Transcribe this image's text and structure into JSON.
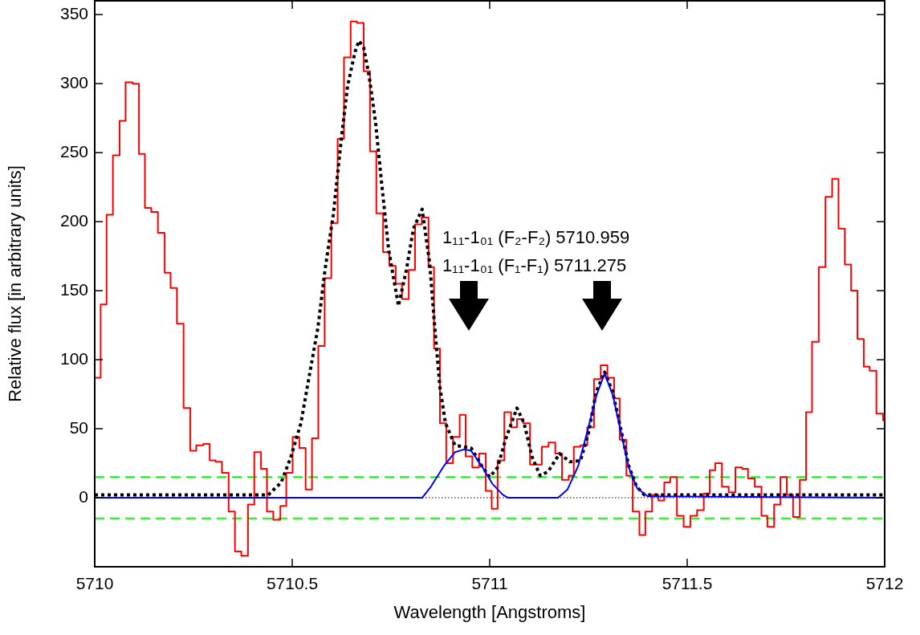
{
  "chart_data": {
    "type": "line",
    "xlabel": "Wavelength [Angstroms]",
    "ylabel": "Relative flux [in arbitrary units]",
    "xlim": [
      5710,
      5712
    ],
    "xticks": [
      5710,
      5710.5,
      5711,
      5711.5,
      5712
    ],
    "ylim": [
      -50,
      360
    ],
    "yticks": [
      0,
      50,
      100,
      150,
      200,
      250,
      300,
      350
    ],
    "annotations": [
      "1₁₁-1₀₁ (F₂-F₂) 5710.959",
      "1₁₁-1₀₁ (F₁-F₁) 5711.275"
    ],
    "ref_lines": [
      {
        "axis": "y",
        "value": 0,
        "label": null,
        "color": "#000000",
        "line_style": "dotted"
      },
      {
        "axis": "y",
        "value": 15,
        "label": null,
        "color": "#00ff00",
        "line_style": "dashed"
      },
      {
        "axis": "y",
        "value": -15,
        "label": null,
        "color": "#00ff00",
        "line_style": "dashed"
      }
    ],
    "series": [
      {
        "type": "step",
        "color": "#ff0000",
        "line_style": "solid",
        "x": [
          5710,
          5710.015,
          5710.03,
          5710.046,
          5710.063,
          5710.078,
          5710.096,
          5710.112,
          5710.127,
          5710.143,
          5710.16,
          5710.177,
          5710.192,
          5710.208,
          5710.225,
          5710.242,
          5710.257,
          5710.275,
          5710.291,
          5710.306,
          5710.322,
          5710.339,
          5710.355,
          5710.371,
          5710.388,
          5710.404,
          5710.421,
          5710.436,
          5710.452,
          5710.47,
          5710.485,
          5710.501,
          5710.518,
          5710.534,
          5710.55,
          5710.566,
          5710.582,
          5710.599,
          5710.615,
          5710.631,
          5710.648,
          5710.664,
          5710.681,
          5710.697,
          5710.713,
          5710.73,
          5710.746,
          5710.762,
          5710.778,
          5710.795,
          5710.811,
          5710.828,
          5710.845,
          5710.859,
          5710.874,
          5710.89,
          5710.907,
          5710.924,
          5710.939,
          5710.956,
          5710.973,
          5710.99,
          5711.005,
          5711.02,
          5711.037,
          5711.054,
          5711.069,
          5711.085,
          5711.102,
          5711.117,
          5711.132,
          5711.149,
          5711.166,
          5711.183,
          5711.2,
          5711.213,
          5711.23,
          5711.247,
          5711.264,
          5711.281,
          5711.298,
          5711.315,
          5711.329,
          5711.346,
          5711.362,
          5711.379,
          5711.394,
          5711.411,
          5711.427,
          5711.442,
          5711.457,
          5711.474,
          5711.491,
          5711.508,
          5711.525,
          5711.542,
          5711.557,
          5711.571,
          5711.588,
          5711.605,
          5711.622,
          5711.639,
          5711.654,
          5711.671,
          5711.688,
          5711.703,
          5711.72,
          5711.736,
          5711.752,
          5711.768,
          5711.785,
          5711.801,
          5711.816,
          5711.833,
          5711.85,
          5711.867,
          5711.883,
          5711.899,
          5711.915,
          5711.931,
          5711.947,
          5711.962,
          5711.979,
          5711.996,
          5712
        ],
        "values": [
          87,
          140,
          205,
          248,
          273,
          301,
          300,
          249,
          210,
          207,
          192,
          163,
          152,
          126,
          65,
          34,
          38,
          39,
          27,
          26,
          18,
          -10,
          -39,
          -42,
          -5,
          33,
          21,
          -10,
          -16,
          -6,
          18,
          44,
          36,
          6,
          43,
          110,
          159,
          199,
          260,
          319,
          345,
          344,
          309,
          251,
          206,
          178,
          168,
          155,
          144,
          165,
          198,
          203,
          167,
          108,
          54,
          25,
          44,
          60,
          30,
          22,
          32,
          5,
          -8,
          27,
          62,
          51,
          57,
          54,
          24,
          24,
          37,
          40,
          32,
          13,
          16,
          37,
          38,
          51,
          86,
          96,
          87,
          72,
          42,
          16,
          -10,
          -27,
          -10,
          2,
          -2,
          11,
          15,
          -13,
          -21,
          -13,
          -9,
          3,
          20,
          25,
          8,
          4,
          22,
          21,
          14,
          8,
          -13,
          -21,
          -5,
          15,
          2,
          -14,
          13,
          62,
          113,
          167,
          218,
          231,
          195,
          169,
          150,
          115,
          95,
          92,
          61,
          56,
          56
        ]
      },
      {
        "color": "#000000",
        "line_style": "dotted",
        "x": [
          5710,
          5710.439,
          5710.472,
          5710.496,
          5710.522,
          5710.543,
          5710.565,
          5710.583,
          5710.604,
          5710.624,
          5710.64,
          5710.659,
          5710.669,
          5710.681,
          5710.695,
          5710.711,
          5710.726,
          5710.744,
          5710.769,
          5710.789,
          5710.807,
          5710.829,
          5710.848,
          5710.861,
          5710.874,
          5710.888,
          5710.912,
          5710.953,
          5710.98,
          5711.0,
          5711.02,
          5711.041,
          5711.069,
          5711.087,
          5711.108,
          5711.128,
          5711.148,
          5711.177,
          5711.203,
          5711.23,
          5711.25,
          5711.27,
          5711.291,
          5711.311,
          5711.331,
          5711.352,
          5711.372,
          5711.392,
          5712
        ],
        "values": [
          2,
          2,
          11,
          29,
          54,
          88,
          123,
          165,
          205,
          259,
          298,
          323,
          331,
          326,
          305,
          272,
          229,
          180,
          139,
          165,
          195,
          209,
          170,
          123,
          80,
          54,
          38,
          36,
          23,
          15,
          22,
          43,
          65,
          54,
          29,
          16,
          19,
          32,
          26,
          27,
          47,
          77,
          91,
          77,
          51,
          23,
          8,
          2,
          2
        ]
      },
      {
        "color": "#0000ff",
        "line_style": "solid",
        "x": [
          5710,
          5710.829,
          5710.851,
          5710.884,
          5710.912,
          5710.935,
          5710.953,
          5710.98,
          5711.007,
          5711.034,
          5711.047,
          5711.173,
          5711.197,
          5711.224,
          5711.25,
          5711.27,
          5711.291,
          5711.312,
          5711.332,
          5711.352,
          5711.373,
          5711.4,
          5712
        ],
        "values": [
          0,
          0,
          8,
          23,
          33,
          35,
          34,
          23,
          10,
          2,
          0,
          0,
          6,
          23,
          51,
          74,
          90,
          74,
          48,
          22,
          7,
          1,
          0
        ]
      }
    ]
  }
}
